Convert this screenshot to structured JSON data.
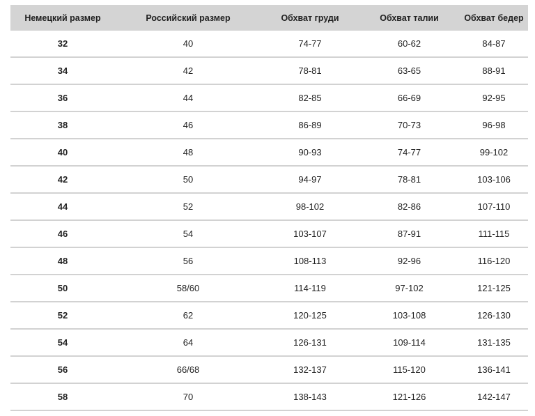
{
  "table": {
    "headers": [
      "Немецкий размер",
      "Российский размер",
      "Обхват груди",
      "Обхват талии",
      "Обхват бедер"
    ],
    "rows": [
      [
        "32",
        "40",
        "74-77",
        "60-62",
        "84-87"
      ],
      [
        "34",
        "42",
        "78-81",
        "63-65",
        "88-91"
      ],
      [
        "36",
        "44",
        "82-85",
        "66-69",
        "92-95"
      ],
      [
        "38",
        "46",
        "86-89",
        "70-73",
        "96-98"
      ],
      [
        "40",
        "48",
        "90-93",
        "74-77",
        "99-102"
      ],
      [
        "42",
        "50",
        "94-97",
        "78-81",
        "103-106"
      ],
      [
        "44",
        "52",
        "98-102",
        "82-86",
        "107-110"
      ],
      [
        "46",
        "54",
        "103-107",
        "87-91",
        "111-115"
      ],
      [
        "48",
        "56",
        "108-113",
        "92-96",
        "116-120"
      ],
      [
        "50",
        "58/60",
        "114-119",
        "97-102",
        "121-125"
      ],
      [
        "52",
        "62",
        "120-125",
        "103-108",
        "126-130"
      ],
      [
        "54",
        "64",
        "126-131",
        "109-114",
        "131-135"
      ],
      [
        "56",
        "66/68",
        "132-137",
        "115-120",
        "136-141"
      ],
      [
        "58",
        "70",
        "138-143",
        "121-126",
        "142-147"
      ]
    ]
  },
  "colors": {
    "header_bg": "#d4d4d4",
    "divider": "#d2d2d2"
  }
}
